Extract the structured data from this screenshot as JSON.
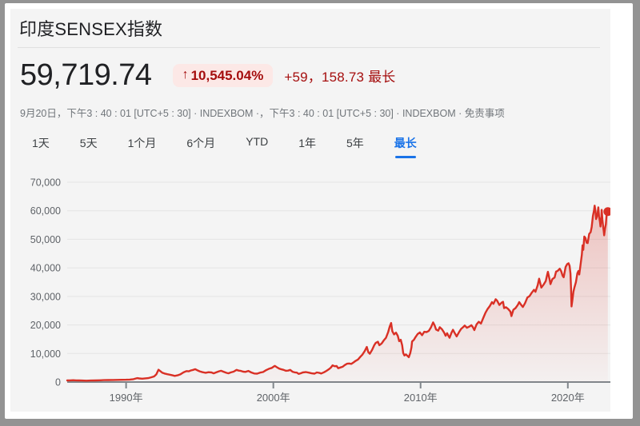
{
  "colors": {
    "frame": "#939393",
    "sheet": "#ffffff",
    "card_background": "#f4f4f4",
    "accent_red": "#d93025",
    "badge_background": "#fce8e6",
    "badge_text": "#a50e0e",
    "active_tab_blue": "#1a73e8"
  },
  "header": {
    "title": "印度SENSEX指数"
  },
  "quote": {
    "price": "59,719.74",
    "up_arrow": "↑",
    "change_percent": "10,545.04%",
    "change_absolute": "+59，158.73 最长",
    "timestamp": "9月20日，下午3 : 40 : 01 [UTC+5 : 30] · INDEXBOM ·，下午3 : 40 : 01 [UTC+5 : 30] · INDEXBOM · ",
    "disclaimer": "免责事项"
  },
  "range_tabs": [
    {
      "label": "1天",
      "active": false
    },
    {
      "label": "5天",
      "active": false
    },
    {
      "label": "1个月",
      "active": false
    },
    {
      "label": "6个月",
      "active": false
    },
    {
      "label": "YTD",
      "active": false
    },
    {
      "label": "1年",
      "active": false
    },
    {
      "label": "5年",
      "active": false
    },
    {
      "label": "最长",
      "active": true
    }
  ],
  "chart_data": {
    "type": "area",
    "line_color": "#d93025",
    "grid_color": "#e4e4e4",
    "axis_line_color": "#80868b",
    "axis_label_color": "#5f6368",
    "grid": true,
    "legend": "none",
    "xlim": [
      1986.0,
      2023.0
    ],
    "ylim": [
      0,
      70000
    ],
    "x_ticks": [
      {
        "label": "1990年",
        "year": 1990
      },
      {
        "label": "2000年",
        "year": 2000
      },
      {
        "label": "2010年",
        "year": 2010
      },
      {
        "label": "2020年",
        "year": 2020
      }
    ],
    "y_ticks": [
      {
        "label": "0",
        "value": 0
      },
      {
        "label": "10,000",
        "value": 10000
      },
      {
        "label": "20,000",
        "value": 20000
      },
      {
        "label": "30,000",
        "value": 30000
      },
      {
        "label": "40,000",
        "value": 40000
      },
      {
        "label": "50,000",
        "value": 50000
      },
      {
        "label": "60,000",
        "value": 60000
      },
      {
        "label": "70,000",
        "value": 70000
      }
    ],
    "end_dot": {
      "x": 2022.72,
      "y": 59719.74
    },
    "series": [
      {
        "name": "SENSEX",
        "points": [
          [
            1986.0,
            560
          ],
          [
            1986.2,
            600
          ],
          [
            1986.4,
            635
          ],
          [
            1986.6,
            590
          ],
          [
            1986.8,
            570
          ],
          [
            1987.0,
            545
          ],
          [
            1987.3,
            480
          ],
          [
            1987.6,
            520
          ],
          [
            1987.9,
            560
          ],
          [
            1988.2,
            615
          ],
          [
            1988.5,
            680
          ],
          [
            1988.8,
            705
          ],
          [
            1989.1,
            720
          ],
          [
            1989.4,
            750
          ],
          [
            1989.7,
            780
          ],
          [
            1990.0,
            800
          ],
          [
            1990.25,
            880
          ],
          [
            1990.5,
            1020
          ],
          [
            1990.75,
            1380
          ],
          [
            1990.9,
            1250
          ],
          [
            1991.1,
            1170
          ],
          [
            1991.3,
            1300
          ],
          [
            1991.5,
            1380
          ],
          [
            1991.7,
            1650
          ],
          [
            1991.9,
            1950
          ],
          [
            1992.05,
            2700
          ],
          [
            1992.2,
            4300
          ],
          [
            1992.3,
            3900
          ],
          [
            1992.45,
            3300
          ],
          [
            1992.6,
            3000
          ],
          [
            1992.8,
            2750
          ],
          [
            1993.0,
            2550
          ],
          [
            1993.15,
            2350
          ],
          [
            1993.3,
            2150
          ],
          [
            1993.5,
            2350
          ],
          [
            1993.7,
            2750
          ],
          [
            1993.9,
            3400
          ],
          [
            1994.1,
            3850
          ],
          [
            1994.25,
            3750
          ],
          [
            1994.4,
            4050
          ],
          [
            1994.55,
            4250
          ],
          [
            1994.7,
            4500
          ],
          [
            1994.85,
            4100
          ],
          [
            1995.0,
            3750
          ],
          [
            1995.2,
            3450
          ],
          [
            1995.4,
            3250
          ],
          [
            1995.6,
            3450
          ],
          [
            1995.8,
            3350
          ],
          [
            1995.95,
            3050
          ],
          [
            1996.1,
            3350
          ],
          [
            1996.3,
            3750
          ],
          [
            1996.45,
            3950
          ],
          [
            1996.6,
            3650
          ],
          [
            1996.8,
            3250
          ],
          [
            1996.95,
            3050
          ],
          [
            1997.1,
            3350
          ],
          [
            1997.3,
            3650
          ],
          [
            1997.5,
            4250
          ],
          [
            1997.65,
            4000
          ],
          [
            1997.8,
            3900
          ],
          [
            1997.95,
            3650
          ],
          [
            1998.1,
            3550
          ],
          [
            1998.3,
            3900
          ],
          [
            1998.5,
            3350
          ],
          [
            1998.7,
            3000
          ],
          [
            1998.9,
            2950
          ],
          [
            1999.1,
            3300
          ],
          [
            1999.3,
            3500
          ],
          [
            1999.5,
            4150
          ],
          [
            1999.7,
            4650
          ],
          [
            1999.9,
            4950
          ],
          [
            2000.1,
            5650
          ],
          [
            2000.25,
            5150
          ],
          [
            2000.4,
            4700
          ],
          [
            2000.55,
            4450
          ],
          [
            2000.7,
            4250
          ],
          [
            2000.85,
            3950
          ],
          [
            2001.0,
            4000
          ],
          [
            2001.15,
            4250
          ],
          [
            2001.3,
            3600
          ],
          [
            2001.45,
            3400
          ],
          [
            2001.6,
            3300
          ],
          [
            2001.72,
            2850
          ],
          [
            2001.85,
            3050
          ],
          [
            2002.0,
            3350
          ],
          [
            2002.2,
            3500
          ],
          [
            2002.4,
            3300
          ],
          [
            2002.6,
            3050
          ],
          [
            2002.8,
            2950
          ],
          [
            2002.95,
            3350
          ],
          [
            2003.1,
            3250
          ],
          [
            2003.25,
            3000
          ],
          [
            2003.45,
            3450
          ],
          [
            2003.6,
            3900
          ],
          [
            2003.75,
            4400
          ],
          [
            2003.9,
            5050
          ],
          [
            2004.02,
            5850
          ],
          [
            2004.15,
            5550
          ],
          [
            2004.3,
            5600
          ],
          [
            2004.4,
            4850
          ],
          [
            2004.55,
            5100
          ],
          [
            2004.7,
            5350
          ],
          [
            2004.85,
            5950
          ],
          [
            2005.0,
            6400
          ],
          [
            2005.15,
            6500
          ],
          [
            2005.3,
            6350
          ],
          [
            2005.45,
            6900
          ],
          [
            2005.6,
            7450
          ],
          [
            2005.75,
            7900
          ],
          [
            2005.9,
            8800
          ],
          [
            2006.05,
            9600
          ],
          [
            2006.2,
            10800
          ],
          [
            2006.35,
            12300
          ],
          [
            2006.45,
            10450
          ],
          [
            2006.55,
            9900
          ],
          [
            2006.7,
            11200
          ],
          [
            2006.85,
            12900
          ],
          [
            2006.95,
            13700
          ],
          [
            2007.1,
            14100
          ],
          [
            2007.2,
            12900
          ],
          [
            2007.35,
            13500
          ],
          [
            2007.5,
            14600
          ],
          [
            2007.65,
            15500
          ],
          [
            2007.8,
            17500
          ],
          [
            2007.9,
            19400
          ],
          [
            2008.0,
            20700
          ],
          [
            2008.08,
            17800
          ],
          [
            2008.2,
            16700
          ],
          [
            2008.33,
            17300
          ],
          [
            2008.45,
            16200
          ],
          [
            2008.55,
            14300
          ],
          [
            2008.65,
            14800
          ],
          [
            2008.75,
            12900
          ],
          [
            2008.82,
            10200
          ],
          [
            2008.9,
            9300
          ],
          [
            2009.0,
            9700
          ],
          [
            2009.1,
            9200
          ],
          [
            2009.2,
            8700
          ],
          [
            2009.3,
            10100
          ],
          [
            2009.38,
            12100
          ],
          [
            2009.42,
            14200
          ],
          [
            2009.55,
            14800
          ],
          [
            2009.65,
            15700
          ],
          [
            2009.8,
            16800
          ],
          [
            2009.95,
            17400
          ],
          [
            2010.1,
            16400
          ],
          [
            2010.25,
            17600
          ],
          [
            2010.4,
            17500
          ],
          [
            2010.55,
            17900
          ],
          [
            2010.7,
            19100
          ],
          [
            2010.85,
            20900
          ],
          [
            2010.95,
            19900
          ],
          [
            2011.05,
            18400
          ],
          [
            2011.2,
            18000
          ],
          [
            2011.3,
            19200
          ],
          [
            2011.45,
            18500
          ],
          [
            2011.6,
            17300
          ],
          [
            2011.7,
            16200
          ],
          [
            2011.8,
            17100
          ],
          [
            2011.9,
            16100
          ],
          [
            2011.97,
            15500
          ],
          [
            2012.1,
            17300
          ],
          [
            2012.2,
            18300
          ],
          [
            2012.3,
            17300
          ],
          [
            2012.45,
            16000
          ],
          [
            2012.6,
            17400
          ],
          [
            2012.75,
            18600
          ],
          [
            2012.9,
            19300
          ],
          [
            2013.0,
            19800
          ],
          [
            2013.15,
            19000
          ],
          [
            2013.3,
            19400
          ],
          [
            2013.45,
            19900
          ],
          [
            2013.55,
            19200
          ],
          [
            2013.65,
            18200
          ],
          [
            2013.8,
            20200
          ],
          [
            2013.95,
            21100
          ],
          [
            2014.1,
            20500
          ],
          [
            2014.25,
            22400
          ],
          [
            2014.4,
            24200
          ],
          [
            2014.55,
            25600
          ],
          [
            2014.7,
            26600
          ],
          [
            2014.85,
            28000
          ],
          [
            2014.95,
            27400
          ],
          [
            2015.1,
            29000
          ],
          [
            2015.2,
            28500
          ],
          [
            2015.35,
            27000
          ],
          [
            2015.5,
            27800
          ],
          [
            2015.6,
            28100
          ],
          [
            2015.67,
            25900
          ],
          [
            2015.8,
            26200
          ],
          [
            2015.95,
            25600
          ],
          [
            2016.1,
            24700
          ],
          [
            2016.17,
            23100
          ],
          [
            2016.3,
            25300
          ],
          [
            2016.45,
            25900
          ],
          [
            2016.6,
            27000
          ],
          [
            2016.7,
            28000
          ],
          [
            2016.85,
            26900
          ],
          [
            2016.95,
            26300
          ],
          [
            2017.1,
            27700
          ],
          [
            2017.25,
            29600
          ],
          [
            2017.4,
            30100
          ],
          [
            2017.55,
            31300
          ],
          [
            2017.7,
            32300
          ],
          [
            2017.8,
            31600
          ],
          [
            2017.95,
            33900
          ],
          [
            2018.05,
            36200
          ],
          [
            2018.2,
            33100
          ],
          [
            2018.35,
            34100
          ],
          [
            2018.5,
            35400
          ],
          [
            2018.6,
            37600
          ],
          [
            2018.65,
            38600
          ],
          [
            2018.75,
            36200
          ],
          [
            2018.82,
            34300
          ],
          [
            2018.95,
            36100
          ],
          [
            2019.1,
            36600
          ],
          [
            2019.2,
            38700
          ],
          [
            2019.3,
            38900
          ],
          [
            2019.45,
            39700
          ],
          [
            2019.55,
            38800
          ],
          [
            2019.65,
            37200
          ],
          [
            2019.72,
            36700
          ],
          [
            2019.85,
            40300
          ],
          [
            2019.95,
            41300
          ],
          [
            2020.05,
            41600
          ],
          [
            2020.12,
            40700
          ],
          [
            2020.18,
            38000
          ],
          [
            2020.22,
            32800
          ],
          [
            2020.25,
            26500
          ],
          [
            2020.3,
            28300
          ],
          [
            2020.38,
            31700
          ],
          [
            2020.45,
            33200
          ],
          [
            2020.55,
            35000
          ],
          [
            2020.65,
            38100
          ],
          [
            2020.72,
            38900
          ],
          [
            2020.78,
            37700
          ],
          [
            2020.85,
            40500
          ],
          [
            2020.95,
            44600
          ],
          [
            2021.0,
            47900
          ],
          [
            2021.05,
            46300
          ],
          [
            2021.12,
            51000
          ],
          [
            2021.2,
            50400
          ],
          [
            2021.28,
            48800
          ],
          [
            2021.35,
            48700
          ],
          [
            2021.45,
            51900
          ],
          [
            2021.55,
            52500
          ],
          [
            2021.62,
            54300
          ],
          [
            2021.7,
            58100
          ],
          [
            2021.78,
            60100
          ],
          [
            2021.82,
            61800
          ],
          [
            2021.88,
            59800
          ],
          [
            2021.92,
            57100
          ],
          [
            2021.97,
            57800
          ],
          [
            2022.03,
            59300
          ],
          [
            2022.07,
            61200
          ],
          [
            2022.12,
            58000
          ],
          [
            2022.18,
            56200
          ],
          [
            2022.22,
            54500
          ],
          [
            2022.27,
            57300
          ],
          [
            2022.3,
            60300
          ],
          [
            2022.35,
            57000
          ],
          [
            2022.4,
            54300
          ],
          [
            2022.44,
            52800
          ],
          [
            2022.47,
            51400
          ],
          [
            2022.53,
            53800
          ],
          [
            2022.58,
            55300
          ],
          [
            2022.63,
            58500
          ],
          [
            2022.68,
            59500
          ],
          [
            2022.72,
            59719.74
          ]
        ]
      }
    ]
  }
}
